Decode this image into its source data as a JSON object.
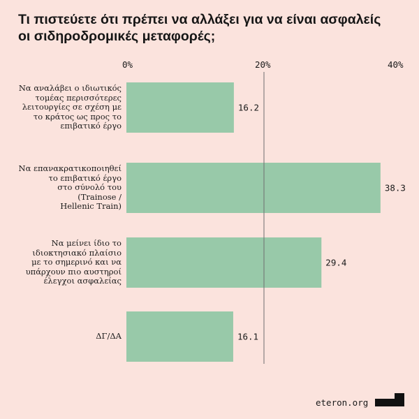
{
  "title_lines": [
    "Τι πιστεύετε ότι πρέπει να αλλάξει για να είναι ασφαλείς",
    "οι σιδηροδρομικές μεταφορές;"
  ],
  "footer": {
    "site": "eteron.org",
    "logo_icon": "eteron-logo-icon"
  },
  "colors": {
    "background": "#fbe3dd",
    "bar": "#98c9a9",
    "reference_line": "#6e6e6e",
    "text": "#1a1a1a"
  },
  "chart_data": {
    "type": "bar",
    "orientation": "horizontal",
    "title": "Τι πιστεύετε ότι πρέπει να αλλάξει για να είναι ασφαλείς οι σιδηροδρομικές μεταφορές;",
    "categories": [
      [
        "Να αναλάβει ο ιδιωτικός",
        "τομέας περισσότερες",
        "λειτουργίες σε σχέση με",
        "το κράτος ως προς το",
        "επιβατικό έργο"
      ],
      [
        "Να επανακρατικοποιηθεί",
        "το επιβατικό έργο",
        "στο σύνολό του",
        "(Trainose /",
        "Hellenic Train)"
      ],
      [
        "Να μείνει ίδιο το",
        "ιδιοκτησιακό πλαίσιο",
        "με το σημερινό και να",
        "υπάρχουν πιο αυστηροί",
        "έλεγχοι ασφαλείας"
      ],
      [
        "ΔΓ/ΔΑ"
      ]
    ],
    "values": [
      16.2,
      38.3,
      29.4,
      16.1
    ],
    "value_labels": [
      "16.2",
      "38.3",
      "29.4",
      "16.1"
    ],
    "xlim": [
      0,
      40
    ],
    "xticks": [
      0,
      20,
      40
    ],
    "xtick_labels": [
      "0%",
      "20%",
      "40%"
    ],
    "reference_line": 20,
    "xlabel": "",
    "ylabel": "",
    "grid": false,
    "legend": "none"
  }
}
